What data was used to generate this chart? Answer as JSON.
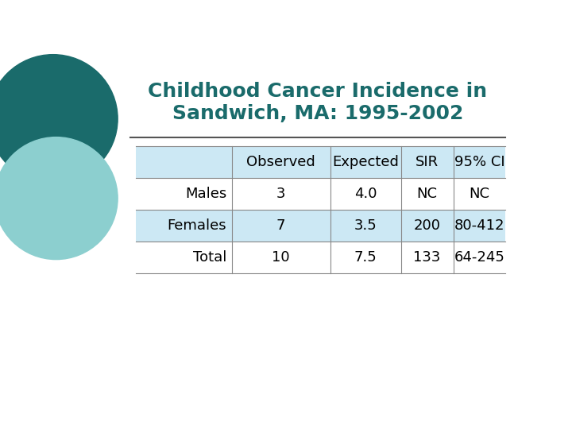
{
  "title": "Childhood Cancer Incidence in\nSandwich, MA: 1995-2002",
  "title_color": "#1a6b6b",
  "title_fontsize": 18,
  "title_fontweight": "bold",
  "bg_color": "#ffffff",
  "table_bg_color": "#cce8f4",
  "table_row_bg_white": "#ffffff",
  "headers": [
    "",
    "Observed",
    "Expected",
    "SIR",
    "95% CI"
  ],
  "rows": [
    [
      "Males",
      "3",
      "4.0",
      "NC",
      "NC"
    ],
    [
      "Females",
      "7",
      "3.5",
      "200",
      "80-412"
    ],
    [
      "Total",
      "10",
      "7.5",
      "133",
      "64-245"
    ]
  ],
  "header_fontsize": 13,
  "cell_fontsize": 13,
  "circle_color1": "#1a6b6b",
  "circle_color2": "#8ccfcf",
  "line_color": "#888888",
  "separator_line_color": "#555555"
}
